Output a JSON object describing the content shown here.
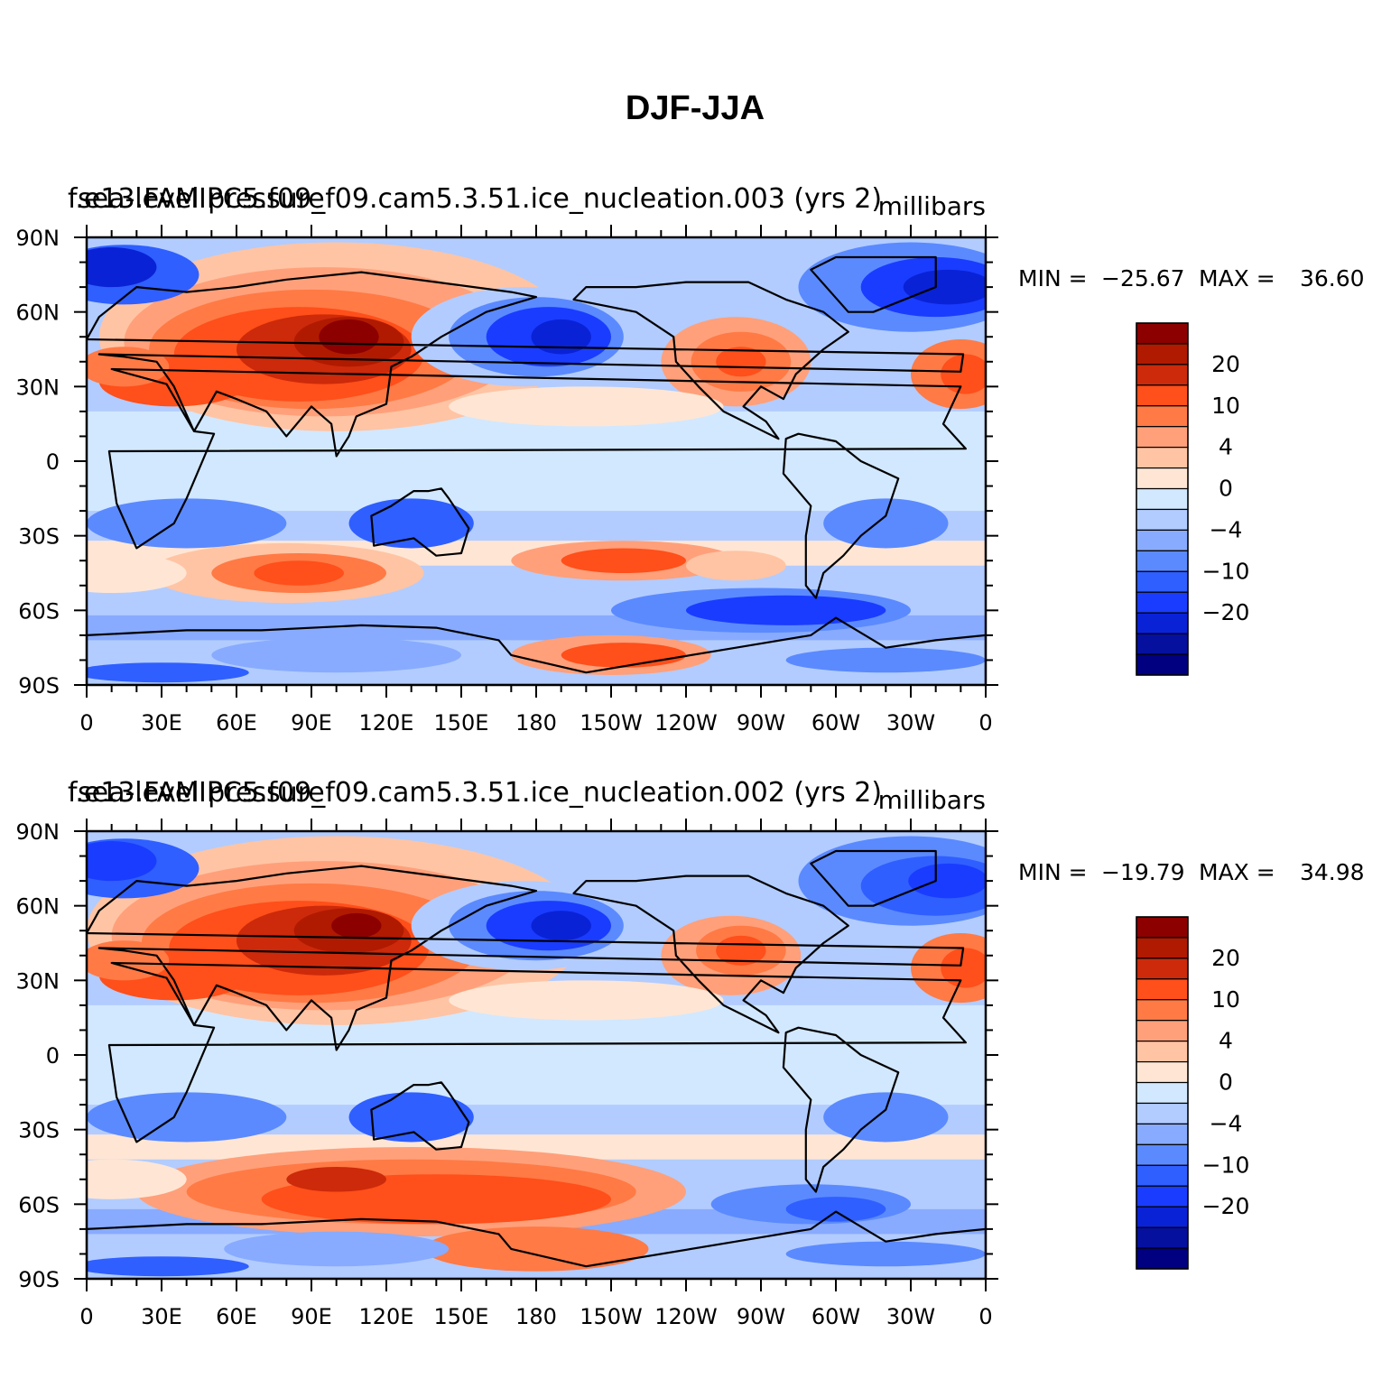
{
  "figure_title": "DJF-JJA",
  "colors": {
    "land_outline": "#000000",
    "background": "#ffffff"
  },
  "colorbar": {
    "levels_labeled": [
      "20",
      "10",
      "4",
      "0",
      "−4",
      "−10",
      "−20"
    ],
    "fill_colors": [
      "#8c0000",
      "#b01a00",
      "#cc2a0a",
      "#ff4f1a",
      "#ff7a45",
      "#ffa07a",
      "#ffc4a4",
      "#ffe6d4",
      "#d2e8ff",
      "#b2ccff",
      "#88abff",
      "#5b8aff",
      "#2f5fff",
      "#1a3cff",
      "#0a22d6",
      "#05109e",
      "#000080"
    ]
  },
  "axes": {
    "y_tick_labels": [
      "90N",
      "60N",
      "30N",
      "0",
      "30S",
      "60S",
      "90S"
    ],
    "x_tick_labels": [
      "0",
      "30E",
      "60E",
      "90E",
      "120E",
      "150E",
      "180",
      "150W",
      "120W",
      "90W",
      "60W",
      "30W",
      "0"
    ]
  },
  "panels": [
    {
      "case_label": "f.e13.FAMIPC5.f09_f09.cam5.3.51.ice_nucleation.003 (yrs 2)",
      "variable_label": "sea-level pressure",
      "units": "millibars",
      "min_label": "MIN =",
      "min_value": "−25.67",
      "max_label": "MAX =",
      "max_value": "36.60"
    },
    {
      "case_label": "f.e13.FAMIPC5.f09_f09.cam5.3.51.ice_nucleation.002 (yrs 2)",
      "variable_label": "sea-level pressure",
      "units": "millibars",
      "min_label": "MIN =",
      "min_value": "−19.79",
      "max_label": "MAX =",
      "max_value": "34.98"
    }
  ]
}
